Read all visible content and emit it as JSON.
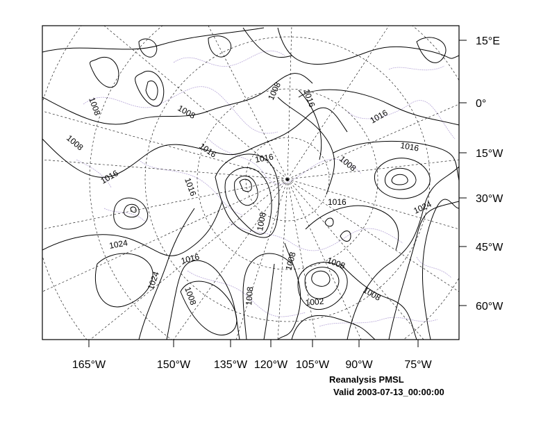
{
  "map": {
    "caption_title": "Reanalysis PMSL",
    "caption_valid": "Valid 2003-07-13_00:00:00",
    "lon_labels": [
      "165°W",
      "150°W",
      "135°W",
      "120°W",
      "105°W",
      "90°W",
      "75°W"
    ],
    "lat_labels": [
      "15°E",
      "0°",
      "15°W",
      "30°W",
      "45°W",
      "60°W"
    ],
    "contour_labels": [
      "1008",
      "1008",
      "1008",
      "1016",
      "1016",
      "1016",
      "1016",
      "1016",
      "1016",
      "1016",
      "1016",
      "1008",
      "1008",
      "1024",
      "1024",
      "1024",
      "1008",
      "1008",
      "1008",
      "1008",
      "1002",
      "1008",
      "1016",
      "1008"
    ],
    "colors": {
      "contour": "#000000",
      "coastline": "#b8a8d8",
      "grid": "#000000",
      "frame": "#000000"
    }
  }
}
